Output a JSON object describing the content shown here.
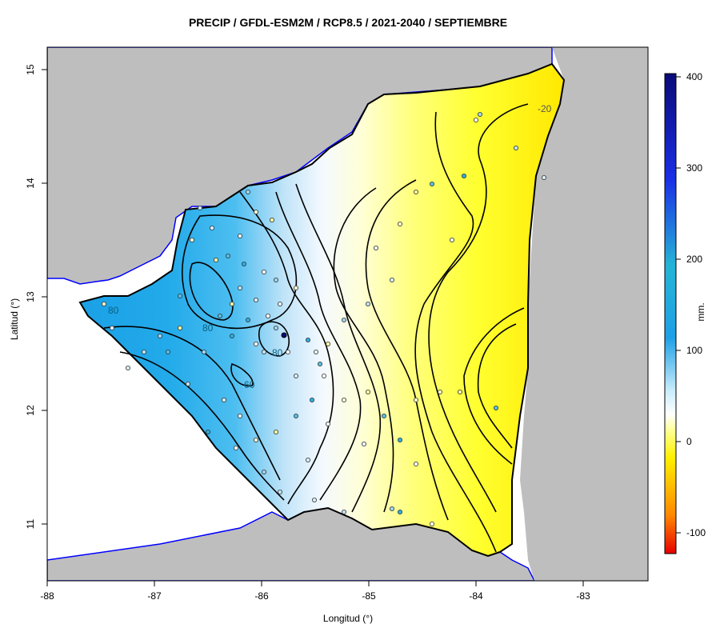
{
  "title": "PRECIP / GFDL-ESM2M / RCP8.5 / 2021-2040 / SEPTIEMBRE",
  "axes": {
    "xlabel": "Longitud (°)",
    "ylabel": "Latitud (°)",
    "x_ticks": [
      "-88",
      "-87",
      "-86",
      "-85",
      "-84",
      "-83"
    ],
    "y_ticks": [
      "11",
      "12",
      "13",
      "14",
      "15"
    ]
  },
  "legend": {
    "unit": "mm.",
    "ticks": [
      "400",
      "300",
      "200",
      "100",
      "0",
      "-100"
    ],
    "range": [
      -120,
      400
    ],
    "colors": {
      "max": "#0a0a78",
      "high": "#1a2fe6",
      "mid_high": "#26b4d6",
      "low_pos": "#1ea0e6",
      "zero": "#ffffff",
      "neg": "#fff000",
      "min": "#e60000"
    }
  },
  "contour_labels": [
    "80",
    "80",
    "80",
    "60",
    "-20"
  ],
  "colors": {
    "land_outside": "#bebebe",
    "sea": "#ffffff",
    "coast": "#0000ff",
    "border": "#000000"
  }
}
